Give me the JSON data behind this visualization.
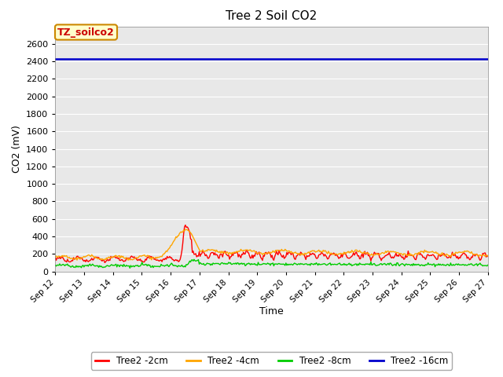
{
  "title": "Tree 2 Soil CO2",
  "xlabel": "Time",
  "ylabel": "CO2 (mV)",
  "annotation_text": "TZ_soilco2",
  "x_tick_labels": [
    "Sep 12",
    "Sep 13",
    "Sep 14",
    "Sep 15",
    "Sep 16",
    "Sep 17",
    "Sep 18",
    "Sep 19",
    "Sep 20",
    "Sep 21",
    "Sep 22",
    "Sep 23",
    "Sep 24",
    "Sep 25",
    "Sep 26",
    "Sep 27"
  ],
  "ylim": [
    0,
    2800
  ],
  "yticks": [
    0,
    200,
    400,
    600,
    800,
    1000,
    1200,
    1400,
    1600,
    1800,
    2000,
    2200,
    2400,
    2600
  ],
  "colors": {
    "red": "#FF0000",
    "orange": "#FFA500",
    "green": "#00CC00",
    "blue": "#0000CC",
    "bg": "#DCDCDC",
    "plot_bg": "#E8E8E8",
    "annotation_bg": "#FFFFCC",
    "annotation_border": "#CC8800",
    "annotation_text": "#CC0000",
    "grid": "#FFFFFF"
  },
  "legend_labels": [
    "Tree2 -2cm",
    "Tree2 -4cm",
    "Tree2 -8cm",
    "Tree2 -16cm"
  ],
  "blue_line_y": 2430,
  "n_points": 500,
  "spike_day": 4.5,
  "total_days": 15
}
